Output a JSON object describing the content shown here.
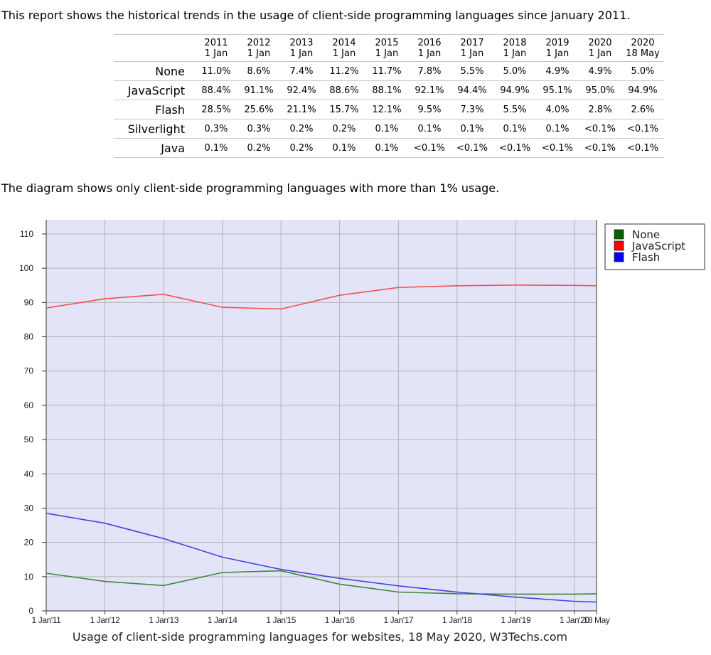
{
  "intro_text": "This report shows the historical trends in the usage of client-side programming languages since January 2011.",
  "table": {
    "columns": [
      {
        "year": "2011",
        "day": "1 Jan"
      },
      {
        "year": "2012",
        "day": "1 Jan"
      },
      {
        "year": "2013",
        "day": "1 Jan"
      },
      {
        "year": "2014",
        "day": "1 Jan"
      },
      {
        "year": "2015",
        "day": "1 Jan"
      },
      {
        "year": "2016",
        "day": "1 Jan"
      },
      {
        "year": "2017",
        "day": "1 Jan"
      },
      {
        "year": "2018",
        "day": "1 Jan"
      },
      {
        "year": "2019",
        "day": "1 Jan"
      },
      {
        "year": "2020",
        "day": "1 Jan"
      },
      {
        "year": "2020",
        "day": "18 May"
      }
    ],
    "rows": [
      {
        "label": "None",
        "values": [
          "11.0%",
          "8.6%",
          "7.4%",
          "11.2%",
          "11.7%",
          "7.8%",
          "5.5%",
          "5.0%",
          "4.9%",
          "4.9%",
          "5.0%"
        ]
      },
      {
        "label": "JavaScript",
        "values": [
          "88.4%",
          "91.1%",
          "92.4%",
          "88.6%",
          "88.1%",
          "92.1%",
          "94.4%",
          "94.9%",
          "95.1%",
          "95.0%",
          "94.9%"
        ]
      },
      {
        "label": "Flash",
        "values": [
          "28.5%",
          "25.6%",
          "21.1%",
          "15.7%",
          "12.1%",
          "9.5%",
          "7.3%",
          "5.5%",
          "4.0%",
          "2.8%",
          "2.6%"
        ]
      },
      {
        "label": "Silverlight",
        "values": [
          "0.3%",
          "0.3%",
          "0.2%",
          "0.2%",
          "0.1%",
          "0.1%",
          "0.1%",
          "0.1%",
          "0.1%",
          "<0.1%",
          "<0.1%"
        ]
      },
      {
        "label": "Java",
        "values": [
          "0.1%",
          "0.2%",
          "0.2%",
          "0.1%",
          "0.1%",
          "<0.1%",
          "<0.1%",
          "<0.1%",
          "<0.1%",
          "<0.1%",
          "<0.1%"
        ]
      }
    ]
  },
  "note_text": "The diagram shows only client-side programming languages with more than 1% usage.",
  "chart_data": {
    "type": "line",
    "title": "",
    "xlabel": "",
    "ylabel": "",
    "caption": "Usage of client-side programming languages for websites, 18 May 2020, W3Techs.com",
    "x": [
      "2011-01-01",
      "2012-01-01",
      "2013-01-01",
      "2014-01-01",
      "2015-01-01",
      "2016-01-01",
      "2017-01-01",
      "2018-01-01",
      "2019-01-01",
      "2020-01-01",
      "2020-05-18"
    ],
    "x_tick_labels": [
      "1 Jan'11",
      "1 Jan'12",
      "1 Jan'13",
      "1 Jan'14",
      "1 Jan'15",
      "1 Jan'16",
      "1 Jan'17",
      "1 Jan'18",
      "1 Jan'19",
      "1 Jan'20",
      "18 May"
    ],
    "ylim": [
      0,
      110
    ],
    "y_ticks": [
      0,
      10,
      20,
      30,
      40,
      50,
      60,
      70,
      80,
      90,
      100,
      110
    ],
    "grid": true,
    "legend_position": "top-right",
    "series": [
      {
        "name": "None",
        "color": "#3a8a3a",
        "legend_color": "#006400",
        "values": [
          11.0,
          8.6,
          7.4,
          11.2,
          11.7,
          7.8,
          5.5,
          5.0,
          4.9,
          4.9,
          5.0
        ]
      },
      {
        "name": "JavaScript",
        "color": "#f05050",
        "legend_color": "#ff0000",
        "values": [
          88.4,
          91.1,
          92.4,
          88.6,
          88.1,
          92.1,
          94.4,
          94.9,
          95.1,
          95.0,
          94.9
        ]
      },
      {
        "name": "Flash",
        "color": "#4444e0",
        "legend_color": "#0000ff",
        "values": [
          28.5,
          25.6,
          21.1,
          15.7,
          12.1,
          9.5,
          7.3,
          5.5,
          4.0,
          2.8,
          2.6
        ]
      }
    ],
    "plot_background": "#e4e4f8"
  }
}
